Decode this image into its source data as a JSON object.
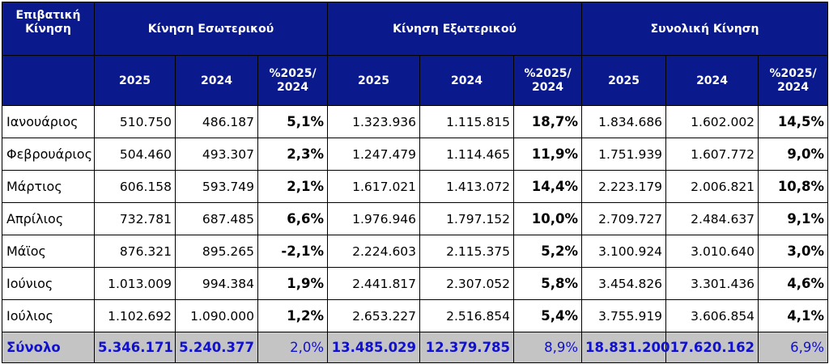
{
  "header": {
    "corner_line1": "Επιβατική",
    "corner_line2": "Κίνηση",
    "groups": [
      "Κίνηση Εσωτερικού",
      "Κίνηση Εξωτερικού",
      "Συνολική Κίνηση"
    ],
    "year_2025": "2025",
    "year_2024": "2024",
    "pct_line1": "%2025/",
    "pct_line2": "2024"
  },
  "rows": [
    {
      "month": "Ιανουάριος",
      "dom": [
        "510.750",
        "486.187",
        "5,1%"
      ],
      "intl": [
        "1.323.936",
        "1.115.815",
        "18,7%"
      ],
      "total": [
        "1.834.686",
        "1.602.002",
        "14,5%"
      ]
    },
    {
      "month": "Φεβρουάριος",
      "dom": [
        "504.460",
        "493.307",
        "2,3%"
      ],
      "intl": [
        "1.247.479",
        "1.114.465",
        "11,9%"
      ],
      "total": [
        "1.751.939",
        "1.607.772",
        "9,0%"
      ]
    },
    {
      "month": "Μάρτιος",
      "dom": [
        "606.158",
        "593.749",
        "2,1%"
      ],
      "intl": [
        "1.617.021",
        "1.413.072",
        "14,4%"
      ],
      "total": [
        "2.223.179",
        "2.006.821",
        "10,8%"
      ]
    },
    {
      "month": "Απρίλιος",
      "dom": [
        "732.781",
        "687.485",
        "6,6%"
      ],
      "intl": [
        "1.976.946",
        "1.797.152",
        "10,0%"
      ],
      "total": [
        "2.709.727",
        "2.484.637",
        "9,1%"
      ]
    },
    {
      "month": "Μάϊος",
      "dom": [
        "876.321",
        "895.265",
        "-2,1%"
      ],
      "intl": [
        "2.224.603",
        "2.115.375",
        "5,2%"
      ],
      "total": [
        "3.100.924",
        "3.010.640",
        "3,0%"
      ]
    },
    {
      "month": "Ιούνιος",
      "dom": [
        "1.013.009",
        "994.384",
        "1,9%"
      ],
      "intl": [
        "2.441.817",
        "2.307.052",
        "5,8%"
      ],
      "total": [
        "3.454.826",
        "3.301.436",
        "4,6%"
      ]
    },
    {
      "month": "Ιούλιος",
      "dom": [
        "1.102.692",
        "1.090.000",
        "1,2%"
      ],
      "intl": [
        "2.653.227",
        "2.516.854",
        "5,4%"
      ],
      "total": [
        "3.755.919",
        "3.606.854",
        "4,1%"
      ]
    }
  ],
  "totals": {
    "label": "Σύνολο",
    "dom": [
      "5.346.171",
      "5.240.377",
      "2,0%"
    ],
    "intl": [
      "13.485.029",
      "12.379.785",
      "8,9%"
    ],
    "total": [
      "18.831.200",
      "17.620.162",
      "6,9%"
    ]
  }
}
